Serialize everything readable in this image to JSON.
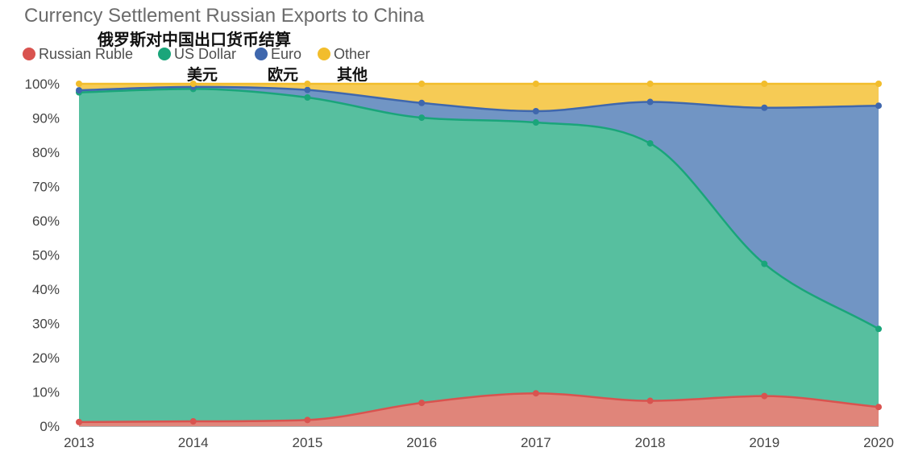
{
  "title": "Currency Settlement Russian Exports to China",
  "subtitle_cn": "俄罗斯对中国出口货币结算",
  "legend": [
    {
      "label": "Russian Ruble",
      "color": "#d9534f",
      "cn": ""
    },
    {
      "label": "US Dollar",
      "color": "#1aa57a",
      "cn": "美元"
    },
    {
      "label": "Euro",
      "color": "#3f67ad",
      "cn": "欧元"
    },
    {
      "label": "Other",
      "color": "#f2bd2c",
      "cn": "其他"
    }
  ],
  "chart_data": {
    "type": "area",
    "stacked": true,
    "x": [
      "2013",
      "2014",
      "2015",
      "2016",
      "2017",
      "2018",
      "2019",
      "2020"
    ],
    "series": [
      {
        "name": "Russian Ruble",
        "values": [
          1.2,
          1.4,
          1.8,
          6.8,
          9.6,
          7.4,
          8.8,
          5.6
        ],
        "color": "#d9534f",
        "fill": "#e0857a"
      },
      {
        "name": "US Dollar",
        "values": [
          96.3,
          97.1,
          94.2,
          83.3,
          79.1,
          75.2,
          38.6,
          22.8
        ],
        "color": "#1aa57a",
        "fill": "#57bf9f"
      },
      {
        "name": "Euro",
        "values": [
          0.6,
          0.6,
          2.2,
          4.3,
          3.3,
          12.1,
          45.6,
          65.2
        ],
        "color": "#3f67ad",
        "fill": "#7195c4"
      },
      {
        "name": "Other",
        "values": [
          1.9,
          0.9,
          1.8,
          5.6,
          8.0,
          5.3,
          7.0,
          6.4
        ],
        "color": "#f2bd2c",
        "fill": "#f6cb55"
      }
    ],
    "ylim": [
      0,
      100
    ],
    "yticks": [
      "0%",
      "10%",
      "20%",
      "30%",
      "40%",
      "50%",
      "60%",
      "70%",
      "80%",
      "90%",
      "100%"
    ],
    "grid": true,
    "legend_position": "top-left"
  }
}
